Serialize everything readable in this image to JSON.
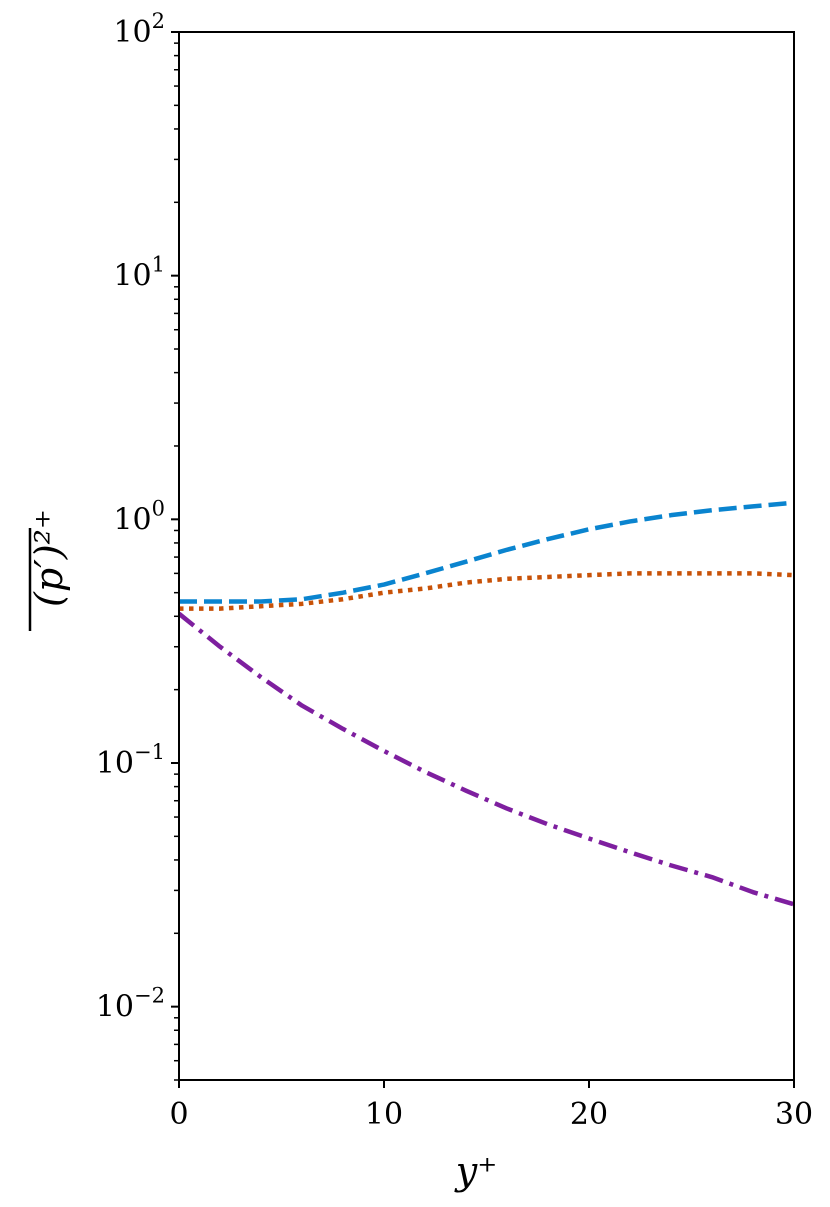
{
  "chart_data": {
    "type": "line",
    "title": "",
    "xlabel": "y⁺",
    "ylabel": "(p′)²⁺",
    "xlim": [
      0,
      30
    ],
    "ylim": [
      0.005,
      100
    ],
    "yscale": "log",
    "grid": false,
    "x_ticks": [
      {
        "value": 0,
        "label": "0"
      },
      {
        "value": 10,
        "label": "10"
      },
      {
        "value": 20,
        "label": "20"
      },
      {
        "value": 30,
        "label": "30"
      }
    ],
    "y_ticks": [
      {
        "value": 0.01,
        "base": "10",
        "exp": "−2"
      },
      {
        "value": 0.1,
        "base": "10",
        "exp": "−1"
      },
      {
        "value": 1,
        "base": "10",
        "exp": "0"
      },
      {
        "value": 10,
        "base": "10",
        "exp": "1"
      },
      {
        "value": 100,
        "base": "10",
        "exp": "2"
      }
    ],
    "series": [
      {
        "color": "#0a84cf",
        "dash": "dashed",
        "x": [
          0,
          2,
          4,
          6,
          8,
          10,
          12,
          14,
          16,
          18,
          20,
          22,
          24,
          26,
          28,
          30
        ],
        "y": [
          0.46,
          0.46,
          0.46,
          0.47,
          0.5,
          0.54,
          0.6,
          0.67,
          0.75,
          0.83,
          0.91,
          0.98,
          1.04,
          1.09,
          1.13,
          1.17
        ]
      },
      {
        "color": "#c85208",
        "dash": "dotted",
        "x": [
          0,
          2,
          4,
          6,
          8,
          10,
          12,
          14,
          16,
          18,
          20,
          22,
          24,
          26,
          28,
          30
        ],
        "y": [
          0.43,
          0.43,
          0.44,
          0.45,
          0.47,
          0.5,
          0.52,
          0.55,
          0.57,
          0.58,
          0.59,
          0.6,
          0.6,
          0.6,
          0.6,
          0.59
        ]
      },
      {
        "color": "#7e1f9f",
        "dash": "dashdot",
        "x": [
          0,
          2,
          4,
          6,
          8,
          10,
          12,
          14,
          16,
          18,
          20,
          22,
          24,
          26,
          28,
          30
        ],
        "y": [
          0.41,
          0.3,
          0.225,
          0.172,
          0.138,
          0.112,
          0.092,
          0.077,
          0.065,
          0.056,
          0.049,
          0.043,
          0.038,
          0.034,
          0.0295,
          0.0263
        ]
      }
    ]
  }
}
